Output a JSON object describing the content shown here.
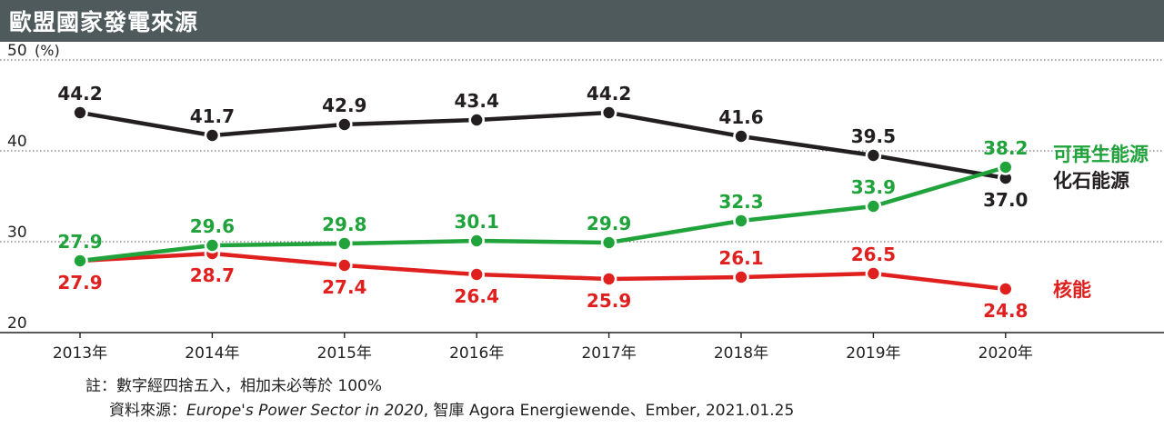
{
  "title": "歐盟國家發電來源",
  "unit": "(%)",
  "chart_data": {
    "type": "line",
    "title": "歐盟國家發電來源",
    "ylabel": "(%)",
    "xlabel": "",
    "ylim": [
      20,
      50
    ],
    "yticks": [
      20,
      30,
      40,
      50
    ],
    "grid": true,
    "categories": [
      "2013年",
      "2014年",
      "2015年",
      "2016年",
      "2017年",
      "2018年",
      "2019年",
      "2020年"
    ],
    "series": [
      {
        "name": "化石能源",
        "color": "#231f20",
        "values": [
          44.2,
          41.7,
          42.9,
          43.4,
          44.2,
          41.6,
          39.5,
          37.0
        ]
      },
      {
        "name": "可再生能源",
        "color": "#1fa33a",
        "values": [
          27.9,
          29.6,
          29.8,
          30.1,
          29.9,
          32.3,
          33.9,
          38.2
        ]
      },
      {
        "name": "核能",
        "color": "#e0201e",
        "values": [
          27.9,
          28.7,
          27.4,
          26.4,
          25.9,
          26.1,
          26.5,
          24.8
        ]
      }
    ]
  },
  "notes": {
    "note": "註：數字經四捨五入，相加未必等於 100%",
    "source_prefix": "資料來源：",
    "source_italic": "Europe's Power Sector in 2020",
    "source_rest": ", 智庫 Agora Energiewende、Ember, 2021.01.25"
  }
}
